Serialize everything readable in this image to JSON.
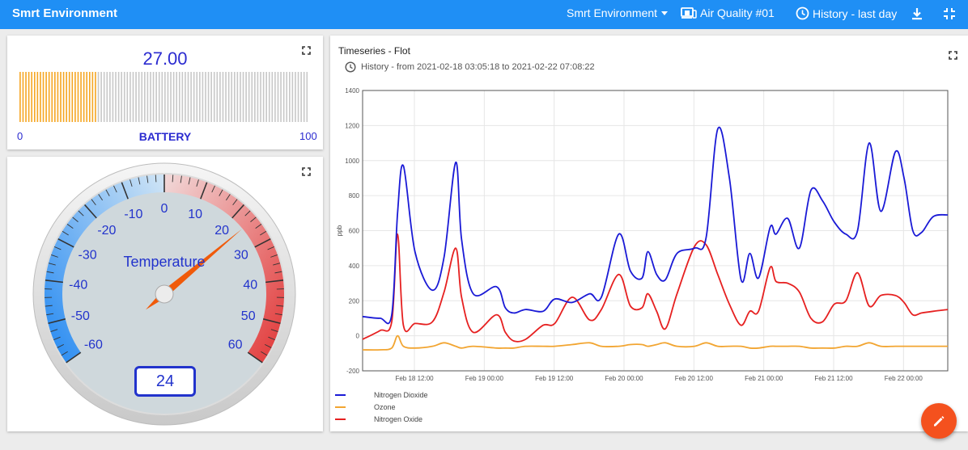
{
  "header": {
    "app_title": "Smrt Environment",
    "dashboard_menu": "Smrt Environment",
    "entity": "Air Quality #01",
    "history": "History - last day"
  },
  "battery": {
    "value_text": "27.00",
    "value": 27,
    "min": "0",
    "max": "100",
    "label": "BATTERY",
    "fill_color": "#f5a623"
  },
  "temperature": {
    "title": "Temperature",
    "value": 24,
    "value_text": "24",
    "ticks": [
      "-60",
      "-50",
      "-40",
      "-30",
      "-20",
      "-10",
      "0",
      "10",
      "20",
      "30",
      "40",
      "50",
      "60"
    ]
  },
  "timeseries": {
    "title": "Timeseries - Flot",
    "subtitle": "History - from 2021-02-18 03:05:18 to 2021-02-22 07:08:22"
  },
  "chart_data": {
    "type": "line",
    "ylabel": "ppb",
    "ylim": [
      -200,
      1400
    ],
    "yticks": [
      "-200",
      "0",
      "200",
      "400",
      "600",
      "800",
      "1000",
      "1200",
      "1400"
    ],
    "xticks": [
      "Feb 18 12:00",
      "Feb 19 00:00",
      "Feb 19 12:00",
      "Feb 20 00:00",
      "Feb 20 12:00",
      "Feb 21 00:00",
      "Feb 21 12:00",
      "Feb 22 00:00"
    ],
    "grid": true,
    "legend_position": "bottom-left",
    "x_hours": [
      0,
      3,
      5,
      6,
      7,
      9,
      12,
      14,
      16,
      17,
      19,
      23,
      24.5,
      26,
      28,
      31,
      33,
      36,
      39,
      41,
      44,
      46,
      48,
      49,
      50.5,
      52,
      54,
      57,
      59,
      61,
      63,
      65,
      66.5,
      68,
      70,
      71,
      73,
      75,
      77,
      79,
      81,
      83,
      85,
      87,
      89,
      91.5,
      93,
      94.5,
      96,
      98,
      100.5
    ],
    "series": [
      {
        "name": "Nitrogen Dioxide",
        "color": "#1a1ad6",
        "values": [
          110,
          100,
          120,
          700,
          970,
          480,
          260,
          450,
          990,
          550,
          240,
          280,
          160,
          130,
          150,
          140,
          210,
          190,
          240,
          220,
          580,
          370,
          330,
          480,
          350,
          320,
          470,
          500,
          560,
          1180,
          900,
          320,
          470,
          330,
          620,
          580,
          670,
          500,
          830,
          770,
          650,
          580,
          600,
          1100,
          710,
          1050,
          900,
          600,
          590,
          680,
          690
        ]
      },
      {
        "name": "Ozone",
        "color": "#f2a531",
        "values": [
          -80,
          -80,
          -70,
          0,
          -60,
          -70,
          -60,
          -40,
          -60,
          -70,
          -60,
          -70,
          -70,
          -70,
          -60,
          -60,
          -60,
          -50,
          -40,
          -60,
          -60,
          -50,
          -50,
          -60,
          -50,
          -40,
          -60,
          -60,
          -40,
          -60,
          -60,
          -60,
          -70,
          -70,
          -60,
          -60,
          -60,
          -60,
          -70,
          -70,
          -70,
          -60,
          -60,
          -40,
          -60,
          -60,
          -60,
          -60,
          -60,
          -60,
          -60
        ]
      },
      {
        "name": "Nitrogen Oxide",
        "color": "#e62020",
        "values": [
          -20,
          30,
          80,
          580,
          60,
          70,
          80,
          250,
          500,
          220,
          20,
          120,
          20,
          -30,
          -20,
          60,
          70,
          220,
          90,
          150,
          350,
          170,
          160,
          240,
          140,
          40,
          240,
          510,
          520,
          350,
          180,
          60,
          140,
          140,
          390,
          310,
          300,
          250,
          100,
          80,
          180,
          200,
          360,
          170,
          230,
          230,
          190,
          120,
          130,
          140,
          150
        ]
      }
    ]
  }
}
